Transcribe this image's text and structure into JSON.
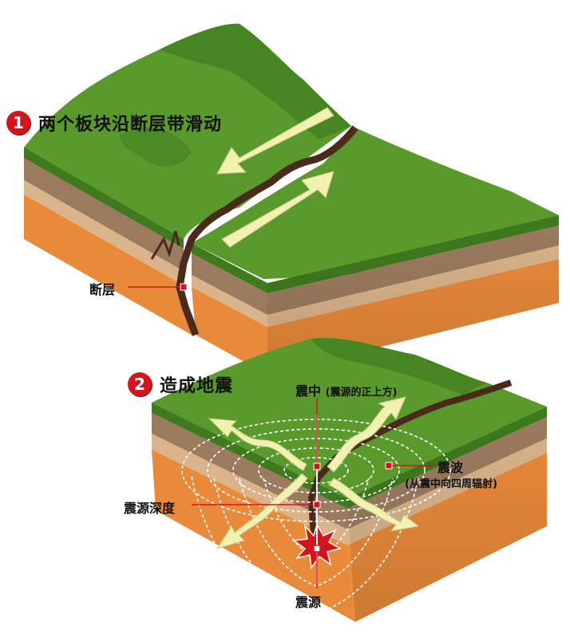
{
  "steps": [
    {
      "number": "1",
      "title": "两个板块沿断层带滑动"
    },
    {
      "number": "2",
      "title": "造成地震"
    }
  ],
  "labels": {
    "fault": "断层",
    "epicenter": "震中",
    "epicenter_note": "(震源的正上方)",
    "seismic_waves": "震波",
    "seismic_waves_note": "(从震中向四周辐射)",
    "focal_depth": "震源深度",
    "focus": "震源"
  },
  "colors": {
    "grass": "#5a9a2c",
    "grass_dark": "#3f7a1e",
    "soil_brown": "#9b7b5e",
    "soil_tan": "#d9b48a",
    "rock_orange": "#e98a3a",
    "fault_dark": "#4a2a1a",
    "arrow": "#f2f2b0",
    "marker_red": "#d4141b"
  }
}
